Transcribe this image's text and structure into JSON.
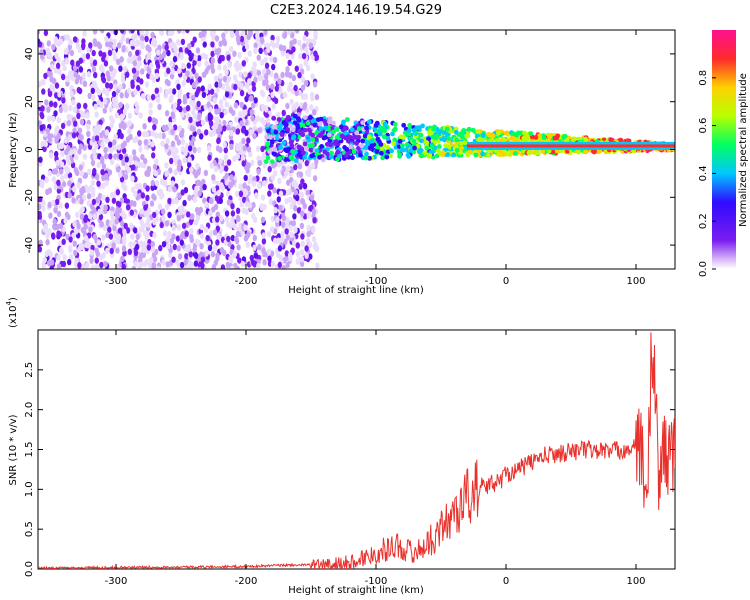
{
  "title": "C2E3.2024.146.19.54.G29",
  "chart_data": [
    {
      "type": "heatmap",
      "xlabel": "Height of straight line (km)",
      "ylabel": "Frequency (Hz)",
      "xlim": [
        -360,
        130
      ],
      "ylim": [
        -50,
        50
      ],
      "xticks": [
        -300,
        -200,
        -100,
        0,
        100
      ],
      "yticks": [
        -40,
        -20,
        0,
        20,
        40
      ],
      "colorbar": {
        "label": "Normalized spectral amplitude",
        "range": [
          0,
          1
        ],
        "ticks": [
          "0.0",
          "0.2",
          "0.4",
          "0.6",
          "0.8"
        ],
        "colormap": [
          "#ffffff",
          "#d8b8f8",
          "#7a1cf0",
          "#2f0bff",
          "#00c8ff",
          "#00ff60",
          "#b8ff00",
          "#ffd000",
          "#ff2a2a",
          "#ff1090"
        ]
      },
      "features": {
        "noise_region_x": [
          -360,
          -145
        ],
        "signal_band_start_x": -185,
        "signal_center_freq_at_start_hz": 5,
        "signal_center_freq_at_end_hz": 1,
        "strong_tone_x": [
          -30,
          130
        ],
        "strong_tone_freq_hz": 1.5
      }
    },
    {
      "type": "line",
      "xlabel": "Height of straight line (km)",
      "ylabel": "SNR (10 * v/v)",
      "y_multiplier_label": "(x10",
      "y_multiplier_exp": "4",
      "xlim": [
        -360,
        130
      ],
      "ylim": [
        0,
        3.0
      ],
      "xticks": [
        -300,
        -200,
        -100,
        0,
        100
      ],
      "yticks": [
        "0.0",
        "0.5",
        "1.0",
        "1.5",
        "2.0",
        "2.5"
      ],
      "line_color": "#e8312c",
      "x": [
        -360,
        -300,
        -200,
        -165,
        -140,
        -120,
        -100,
        -85,
        -70,
        -55,
        -45,
        -35,
        -25,
        -15,
        -5,
        0,
        10,
        20,
        30,
        40,
        60,
        80,
        90,
        100,
        105,
        108,
        110,
        112,
        115,
        118,
        120,
        122,
        125,
        130
      ],
      "y": [
        0.01,
        0.02,
        0.03,
        0.05,
        0.05,
        0.08,
        0.2,
        0.3,
        0.2,
        0.4,
        0.6,
        0.8,
        1.0,
        1.05,
        1.1,
        1.2,
        1.25,
        1.35,
        1.42,
        1.45,
        1.5,
        1.48,
        1.5,
        1.52,
        1.45,
        0.6,
        1.6,
        2.9,
        2.2,
        0.8,
        1.6,
        1.45,
        1.45,
        1.45
      ]
    }
  ]
}
